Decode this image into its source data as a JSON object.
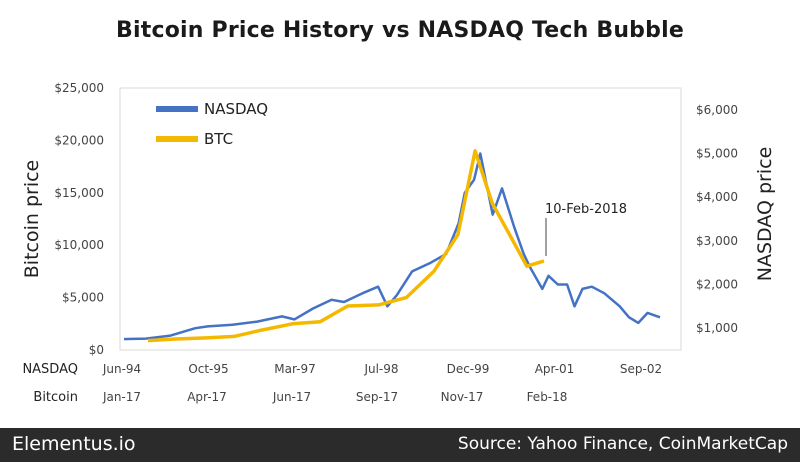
{
  "chart_data": {
    "type": "line",
    "title": "Bitcoin Price History vs NASDAQ Tech Bubble",
    "left_axis": {
      "label": "Bitcoin price",
      "range": [
        0,
        25000
      ],
      "ticks": [
        "$0",
        "$5,000",
        "$10,000",
        "$15,000",
        "$20,000",
        "$25,000"
      ]
    },
    "right_axis": {
      "label": "NASDAQ price",
      "range": [
        500,
        6500
      ],
      "ticks": [
        "$1,000",
        "$2,000",
        "$3,000",
        "$4,000",
        "$5,000",
        "$6,000"
      ]
    },
    "x_axis_rows": [
      {
        "label": "NASDAQ",
        "ticks": [
          "Jun-94",
          "Oct-95",
          "Mar-97",
          "Jul-98",
          "Dec-99",
          "Apr-01",
          "Sep-02"
        ]
      },
      {
        "label": "Bitcoin",
        "ticks": [
          "Jan-17",
          "Apr-17",
          "Jun-17",
          "Sep-17",
          "Nov-17",
          "Feb-18"
        ]
      }
    ],
    "legend": [
      "NASDAQ",
      "BTC"
    ],
    "legend_position": "top-left",
    "annotation": "10-Feb-2018",
    "series": [
      {
        "name": "NASDAQ",
        "color": "#4472c4",
        "axis": "right",
        "x": [
          1994.45,
          1994.8,
          1995.2,
          1995.6,
          1995.8,
          1996.2,
          1996.6,
          1997.0,
          1997.2,
          1997.5,
          1997.8,
          1998.0,
          1998.3,
          1998.55,
          1998.7,
          1998.85,
          1999.1,
          1999.4,
          1999.65,
          1999.85,
          1999.95,
          2000.1,
          2000.2,
          2000.4,
          2000.55,
          2000.75,
          2000.9,
          2001.0,
          2001.2,
          2001.3,
          2001.45,
          2001.6,
          2001.72,
          2001.85,
          2002.0,
          2002.2,
          2002.45,
          2002.6,
          2002.75,
          2002.9,
          2003.1
        ],
        "values": [
          750,
          760,
          830,
          1000,
          1040,
          1080,
          1150,
          1270,
          1200,
          1450,
          1650,
          1600,
          1800,
          1950,
          1500,
          1750,
          2300,
          2500,
          2700,
          3400,
          4100,
          4400,
          5000,
          3600,
          4200,
          3300,
          2700,
          2400,
          1900,
          2200,
          2000,
          2000,
          1500,
          1900,
          1950,
          1800,
          1500,
          1250,
          1120,
          1350,
          1250
        ]
      },
      {
        "name": "BTC",
        "color": "#f5b800",
        "axis": "left",
        "x": [
          2017.0,
          2017.08,
          2017.17,
          2017.25,
          2017.33,
          2017.42,
          2017.5,
          2017.58,
          2017.67,
          2017.75,
          2017.83,
          2017.9,
          2017.95,
          2018.0,
          2018.05,
          2018.1,
          2018.15
        ],
        "values": [
          900,
          1050,
          1150,
          1300,
          1900,
          2500,
          2700,
          4200,
          4300,
          5000,
          7500,
          11000,
          19000,
          14000,
          11000,
          8000,
          8500
        ]
      }
    ]
  },
  "footer": {
    "brand": "Elementus.io",
    "source": "Source: Yahoo Finance, CoinMarketCap"
  }
}
